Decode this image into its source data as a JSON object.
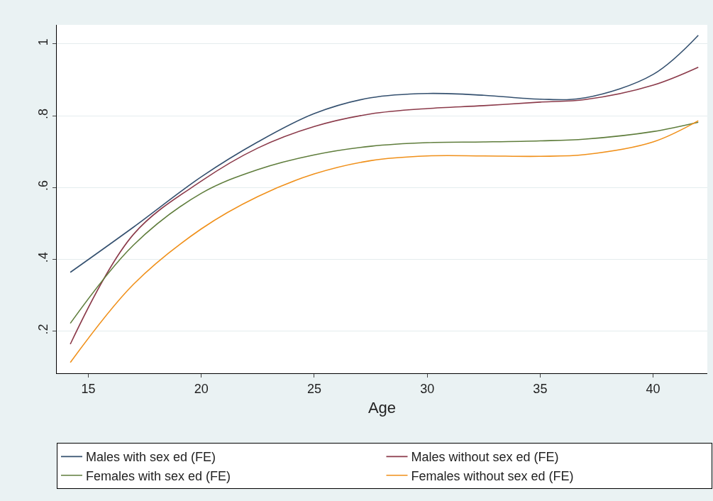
{
  "chart_data": {
    "type": "line",
    "xlabel": "Age",
    "x": [
      14.2,
      17,
      20,
      22.5,
      25,
      27.5,
      30,
      32.5,
      35,
      37,
      40,
      42
    ],
    "series": [
      {
        "name": "Males with sex ed (FE)",
        "color": "#34506f",
        "values": [
          0.364,
          0.49,
          0.63,
          0.727,
          0.806,
          0.85,
          0.862,
          0.857,
          0.846,
          0.85,
          0.915,
          1.024
        ]
      },
      {
        "name": "Males without sex ed (FE)",
        "color": "#8b3a4a",
        "values": [
          0.164,
          0.47,
          0.618,
          0.71,
          0.77,
          0.805,
          0.82,
          0.828,
          0.838,
          0.845,
          0.885,
          0.935
        ]
      },
      {
        "name": "Females with sex ed (FE)",
        "color": "#5f7d3c",
        "values": [
          0.222,
          0.44,
          0.584,
          0.65,
          0.691,
          0.715,
          0.725,
          0.727,
          0.73,
          0.735,
          0.756,
          0.782
        ]
      },
      {
        "name": "Females without sex ed (FE)",
        "color": "#f0901a",
        "values": [
          0.113,
          0.331,
          0.485,
          0.575,
          0.638,
          0.675,
          0.688,
          0.688,
          0.687,
          0.692,
          0.727,
          0.786
        ]
      }
    ],
    "xlim": [
      13.6,
      42.4
    ],
    "xticks": [
      15,
      20,
      25,
      30,
      35,
      40
    ],
    "ylim": [
      0.083,
      1.053
    ],
    "yticks": [
      {
        "value": 0.2,
        "label": ".2"
      },
      {
        "value": 0.4,
        "label": ".4"
      },
      {
        "value": 0.6,
        "label": ".6"
      },
      {
        "value": 0.8,
        "label": ".8"
      },
      {
        "value": 1,
        "label": "1"
      }
    ],
    "grid": "y",
    "legend": "bottom",
    "marker": "none",
    "line_style": "solid"
  }
}
